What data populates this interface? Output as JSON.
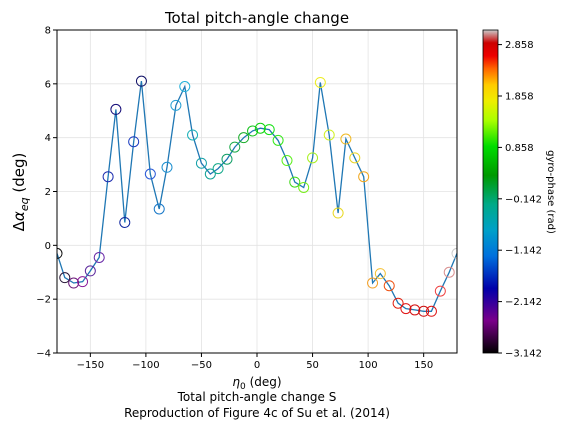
{
  "chart_data": {
    "type": "scatter",
    "title": "Total pitch-angle change",
    "xlabel": "η₀ (deg)",
    "ylabel": "Δα_eq (deg)",
    "xlim": [
      -180,
      180
    ],
    "ylim": [
      -4,
      8
    ],
    "xticks": [
      -150,
      -100,
      -50,
      0,
      50,
      100,
      150
    ],
    "yticks": [
      -4,
      -2,
      0,
      2,
      4,
      6,
      8
    ],
    "grid": true,
    "line_color": "#1f77b4",
    "marker": "open-circle",
    "caption": [
      "Total pitch-angle change S",
      "Reproduction of Figure 4c of Su et al. (2014)"
    ],
    "colorbar": {
      "label": "gyro-phase (rad)",
      "range": [
        -3.142,
        3.142
      ],
      "ticks": [
        2.858,
        1.858,
        0.858,
        -0.142,
        -1.142,
        -2.142,
        -3.142
      ],
      "colormap": "nipy_spectral"
    },
    "points": [
      {
        "x": -180,
        "y": -0.3,
        "color": "#111111"
      },
      {
        "x": -173,
        "y": -1.2,
        "color": "#2a1a3a"
      },
      {
        "x": -165,
        "y": -1.4,
        "color": "#6a1878"
      },
      {
        "x": -157,
        "y": -1.35,
        "color": "#8a1a9a"
      },
      {
        "x": -150,
        "y": -0.95,
        "color": "#5d2a9e"
      },
      {
        "x": -142,
        "y": -0.45,
        "color": "#6a2aa8"
      },
      {
        "x": -134,
        "y": 2.55,
        "color": "#2030b0"
      },
      {
        "x": -127,
        "y": 5.05,
        "color": "#150c78"
      },
      {
        "x": -119,
        "y": 0.85,
        "color": "#1028a0"
      },
      {
        "x": -111,
        "y": 3.85,
        "color": "#1d3ec0"
      },
      {
        "x": -104,
        "y": 6.1,
        "color": "#101066"
      },
      {
        "x": -96,
        "y": 2.65,
        "color": "#2a5ad8"
      },
      {
        "x": -88,
        "y": 1.35,
        "color": "#1878c8"
      },
      {
        "x": -81,
        "y": 2.9,
        "color": "#1c8fd0"
      },
      {
        "x": -73,
        "y": 5.2,
        "color": "#27a0d4"
      },
      {
        "x": -65,
        "y": 5.9,
        "color": "#20b0d8"
      },
      {
        "x": -58,
        "y": 4.1,
        "color": "#19b0b8"
      },
      {
        "x": -50,
        "y": 3.05,
        "color": "#14a0a8"
      },
      {
        "x": -42,
        "y": 2.65,
        "color": "#11a096"
      },
      {
        "x": -35,
        "y": 2.85,
        "color": "#12a88a"
      },
      {
        "x": -27,
        "y": 3.2,
        "color": "#109e66"
      },
      {
        "x": -20,
        "y": 3.65,
        "color": "#1aaa4a"
      },
      {
        "x": -12,
        "y": 4.0,
        "color": "#18ad2a"
      },
      {
        "x": -4,
        "y": 4.25,
        "color": "#12c21a"
      },
      {
        "x": 3,
        "y": 4.35,
        "color": "#0ed20e"
      },
      {
        "x": 11,
        "y": 4.3,
        "color": "#10e010"
      },
      {
        "x": 19,
        "y": 3.9,
        "color": "#34e818"
      },
      {
        "x": 27,
        "y": 3.15,
        "color": "#5af01a"
      },
      {
        "x": 34,
        "y": 2.35,
        "color": "#40d818"
      },
      {
        "x": 42,
        "y": 2.15,
        "color": "#78ee1c"
      },
      {
        "x": 50,
        "y": 3.25,
        "color": "#a8f020"
      },
      {
        "x": 57,
        "y": 6.05,
        "color": "#ecec20"
      },
      {
        "x": 65,
        "y": 4.1,
        "color": "#d0f024"
      },
      {
        "x": 73,
        "y": 1.2,
        "color": "#e8d820"
      },
      {
        "x": 80,
        "y": 3.95,
        "color": "#f0b820"
      },
      {
        "x": 88,
        "y": 3.25,
        "color": "#e6d428"
      },
      {
        "x": 96,
        "y": 2.55,
        "color": "#f0a820"
      },
      {
        "x": 104,
        "y": -1.4,
        "color": "#f2a028"
      },
      {
        "x": 111,
        "y": -1.05,
        "color": "#f4c030"
      },
      {
        "x": 119,
        "y": -1.5,
        "color": "#ee5010"
      },
      {
        "x": 127,
        "y": -2.15,
        "color": "#e22010"
      },
      {
        "x": 134,
        "y": -2.35,
        "color": "#e01212"
      },
      {
        "x": 142,
        "y": -2.4,
        "color": "#d41010"
      },
      {
        "x": 150,
        "y": -2.45,
        "color": "#cc1010"
      },
      {
        "x": 157,
        "y": -2.45,
        "color": "#dd1414"
      },
      {
        "x": 165,
        "y": -1.7,
        "color": "#ee4040"
      },
      {
        "x": 173,
        "y": -1.0,
        "color": "#d89090"
      },
      {
        "x": 180,
        "y": -0.3,
        "color": "#cccccc"
      }
    ]
  }
}
